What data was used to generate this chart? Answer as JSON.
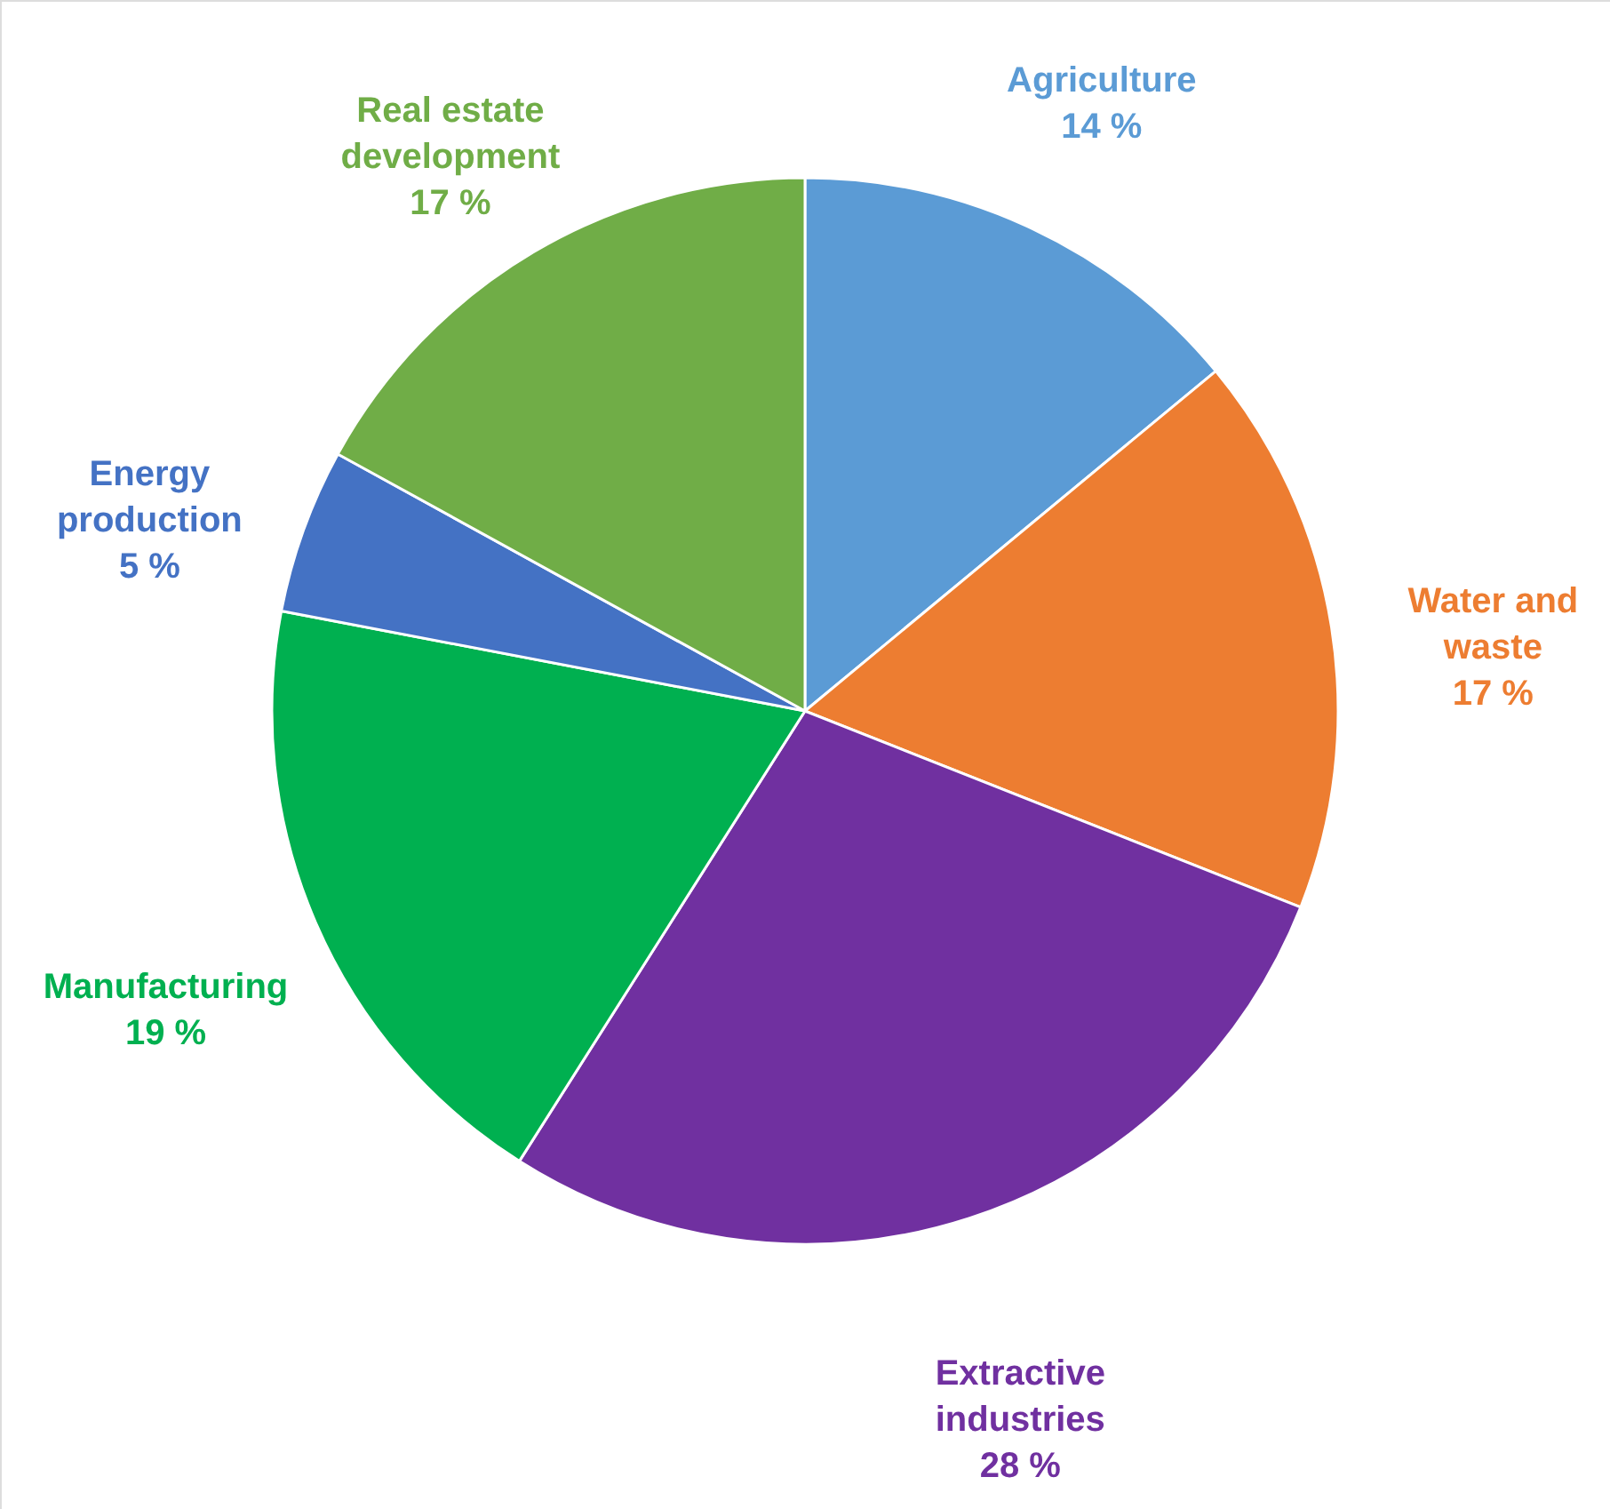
{
  "chart_data": {
    "type": "pie",
    "categories": [
      "Agriculture",
      "Water and waste",
      "Extractive industries",
      "Manufacturing",
      "Energy production",
      "Real estate development"
    ],
    "values": [
      14,
      17,
      28,
      19,
      5,
      17
    ],
    "value_labels": [
      "14 %",
      "17 %",
      "28 %",
      "19 %",
      "5 %",
      "17 %"
    ],
    "colors": [
      "#5b9bd5",
      "#ed7d31",
      "#7030a0",
      "#00b050",
      "#4472c4",
      "#70ad47"
    ]
  }
}
